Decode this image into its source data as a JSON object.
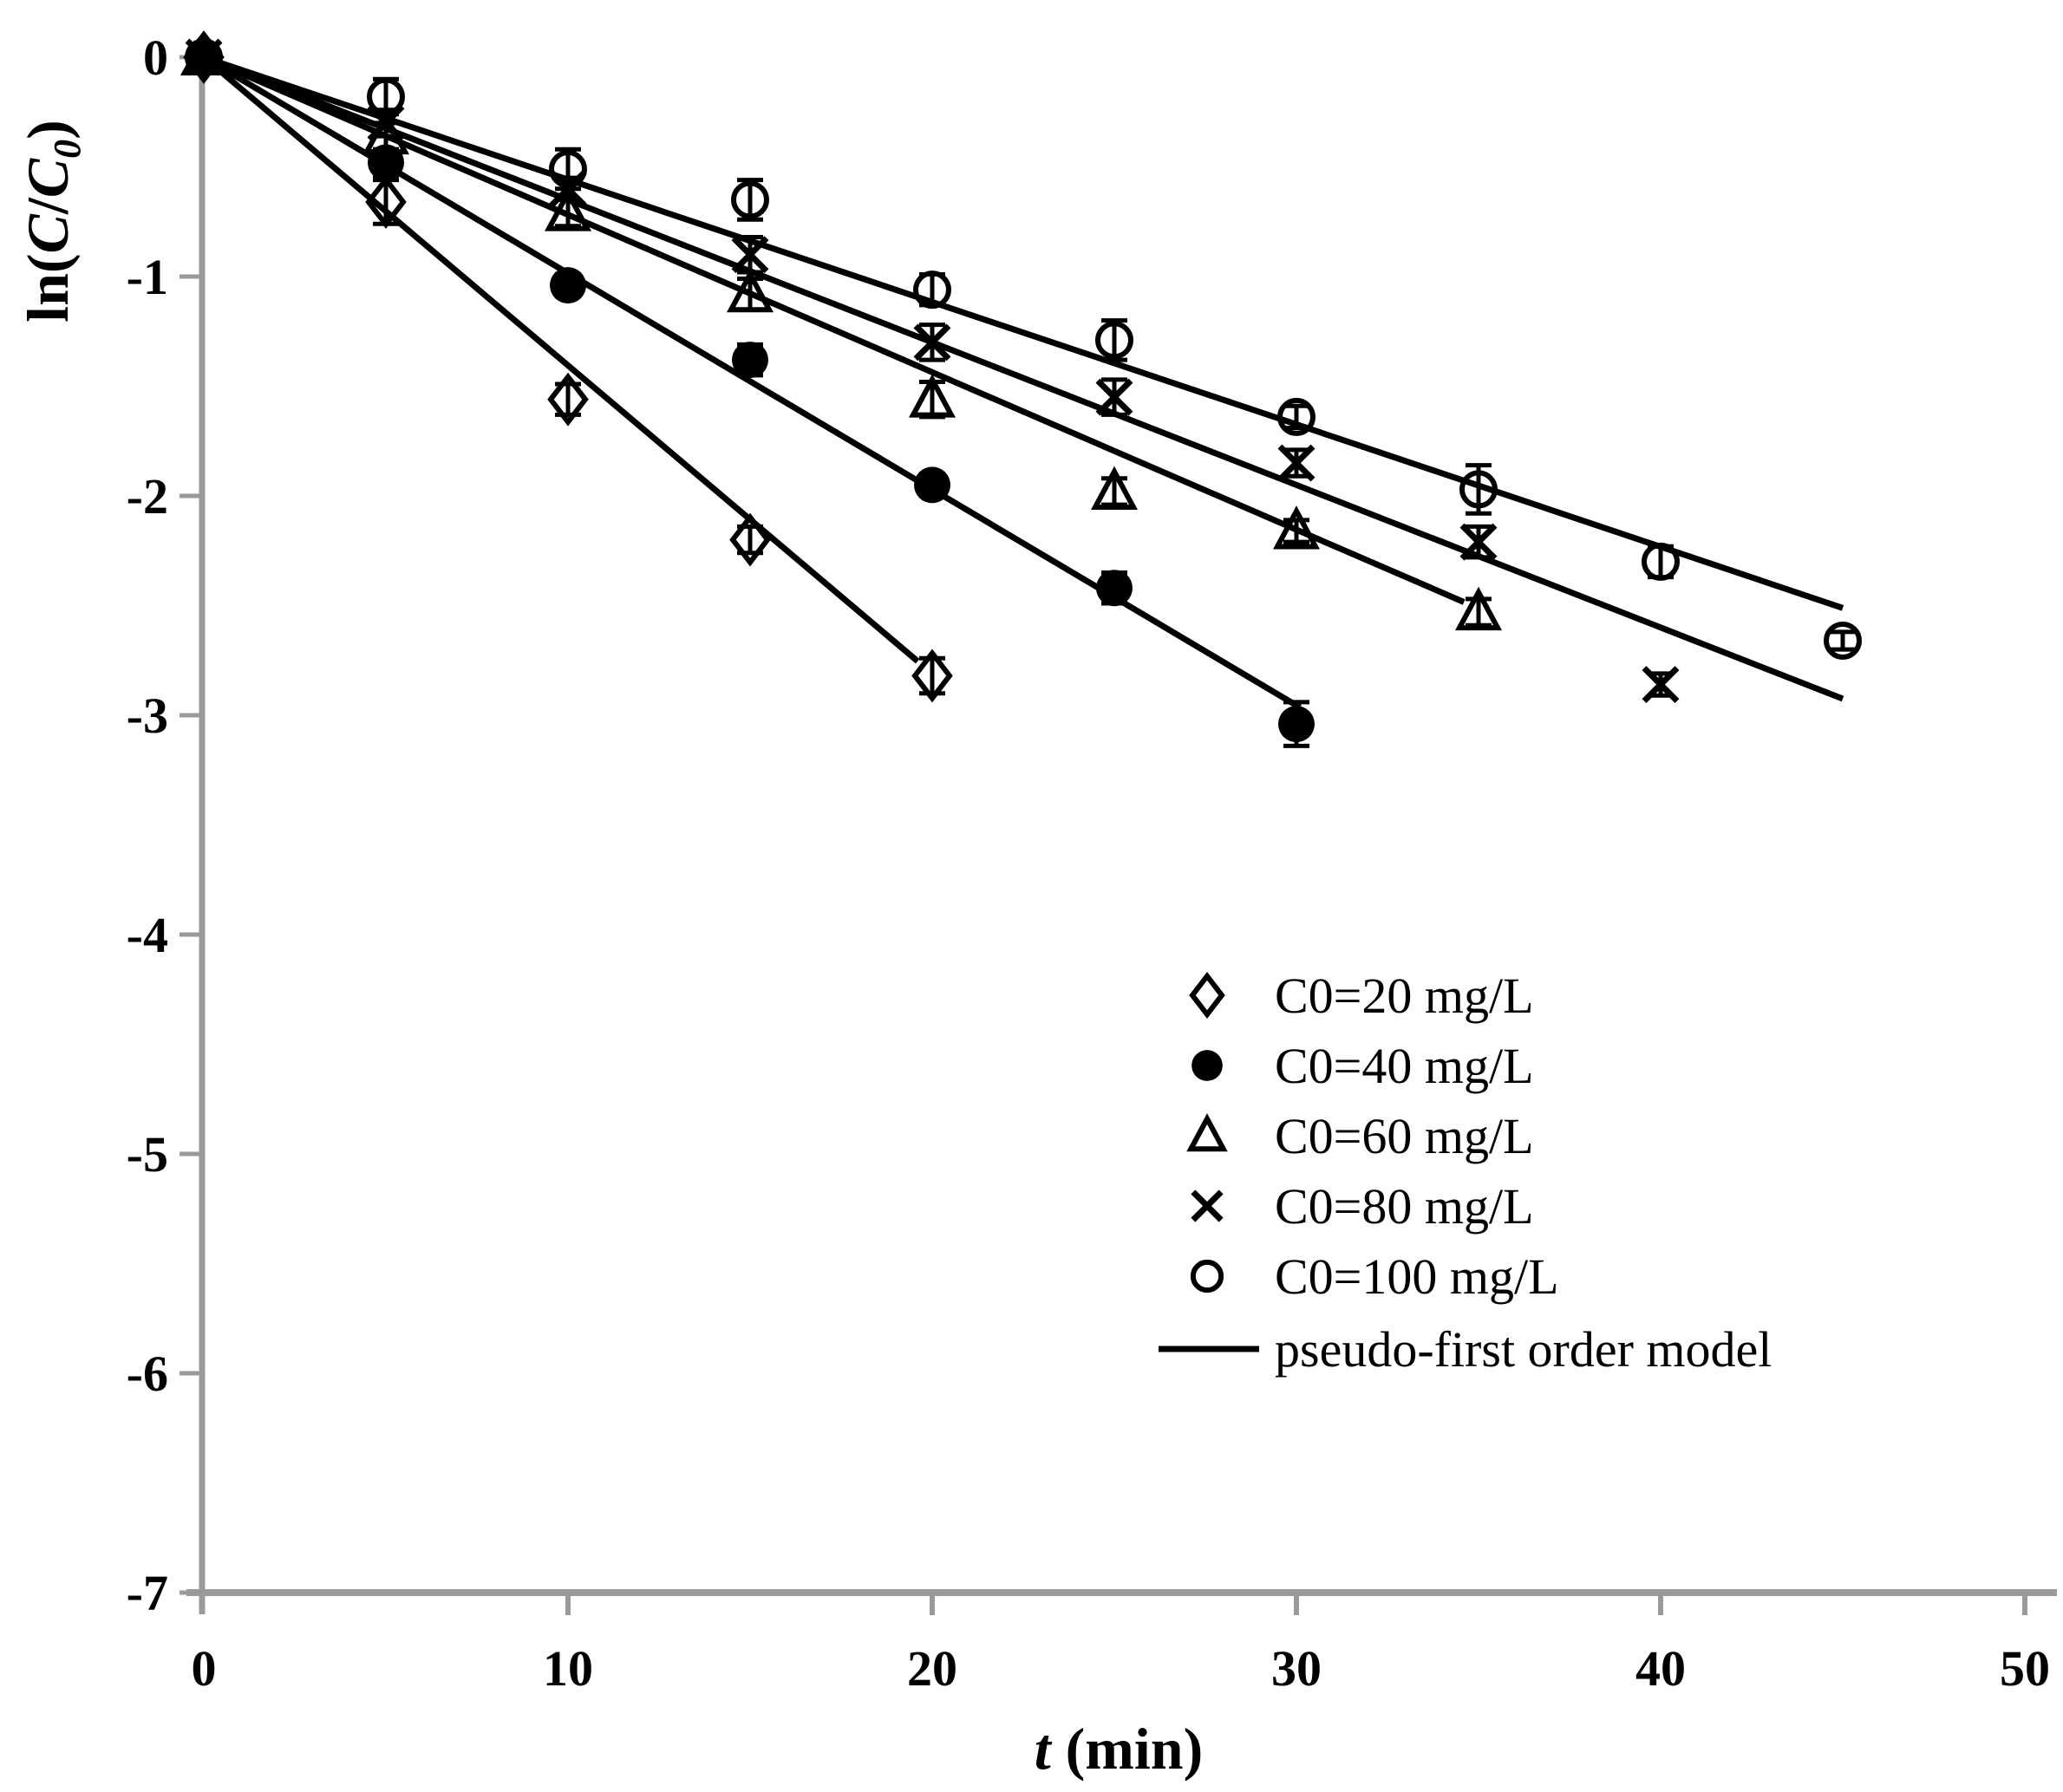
{
  "figure": {
    "background_color": "#ffffff",
    "axis_color": "#9a9a9a",
    "data_color": "#000000"
  },
  "chart_data": {
    "type": "scatter",
    "title": "",
    "xlabel": "t (min)",
    "ylabel": "ln(C/C0)",
    "xlim": [
      0,
      50
    ],
    "ylim": [
      -7,
      0
    ],
    "grid": false,
    "x_ticks": [
      0,
      10,
      20,
      30,
      40,
      50
    ],
    "y_ticks": [
      0,
      -1,
      -2,
      -3,
      -4,
      -5,
      -6,
      -7
    ],
    "legend_position": "inside-lower-right",
    "series": [
      {
        "label": "C0=20 mg/L",
        "marker": "open-diamond",
        "x": [
          0,
          5,
          10,
          15,
          20
        ],
        "y": [
          0,
          -0.66,
          -1.56,
          -2.2,
          -2.82
        ],
        "err": [
          0,
          0.1,
          0.07,
          0.06,
          0.08
        ],
        "fit_slope": -0.1405,
        "fit_t_end": 19.6
      },
      {
        "label": "C0=40 mg/L",
        "marker": "filled-circle",
        "x": [
          0,
          5,
          10,
          15,
          20,
          25,
          30
        ],
        "y": [
          0,
          -0.48,
          -1.04,
          -1.38,
          -1.95,
          -2.42,
          -3.04
        ],
        "err": [
          0,
          0.06,
          0.05,
          0.07,
          0.05,
          0.07,
          0.1
        ],
        "fit_slope": -0.0985,
        "fit_t_end": 30.1
      },
      {
        "label": "C0=60 mg/L",
        "marker": "open-triangle",
        "x": [
          0,
          5,
          10,
          15,
          20,
          25,
          30,
          35
        ],
        "y": [
          0,
          -0.36,
          -0.71,
          -1.08,
          -1.56,
          -1.98,
          -2.16,
          -2.53
        ],
        "err": [
          0,
          0.06,
          0.06,
          0.07,
          0.08,
          0.06,
          0.05,
          0.06
        ],
        "fit_slope": -0.0718,
        "fit_t_end": 34.6
      },
      {
        "label": "C0=80 mg/L",
        "marker": "x-cross",
        "x": [
          0,
          5,
          10,
          15,
          20,
          25,
          30,
          35,
          40
        ],
        "y": [
          0,
          -0.3,
          -0.6,
          -0.9,
          -1.3,
          -1.55,
          -1.85,
          -2.21,
          -2.86
        ],
        "err": [
          0,
          0.06,
          0.05,
          0.08,
          0.08,
          0.08,
          0.06,
          0.07,
          0.05
        ],
        "fit_slope": -0.065,
        "fit_t_end": 45
      },
      {
        "label": "C0=100 mg/L",
        "marker": "open-circle",
        "x": [
          0,
          5,
          10,
          15,
          20,
          25,
          30,
          35,
          40,
          45
        ],
        "y": [
          0,
          -0.18,
          -0.51,
          -0.65,
          -1.06,
          -1.29,
          -1.64,
          -1.97,
          -2.3,
          -2.66
        ],
        "err": [
          0,
          0.08,
          0.09,
          0.09,
          0.07,
          0.09,
          0.05,
          0.11,
          0.07,
          0.04
        ],
        "fit_slope": -0.0558,
        "fit_t_end": 45
      }
    ],
    "model_label": "pseudo-first order model"
  }
}
